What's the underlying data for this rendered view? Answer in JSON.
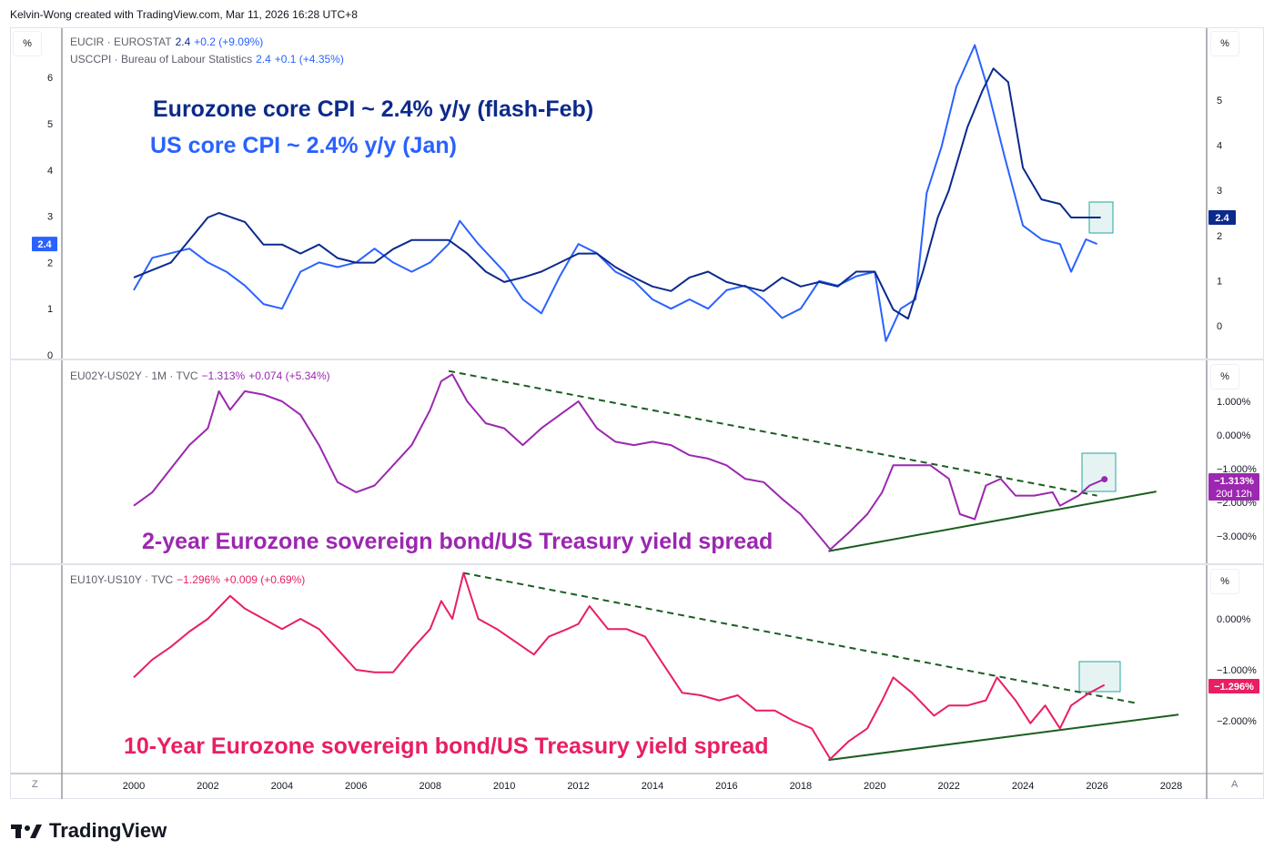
{
  "credit": "Kelvin-Wong created with TradingView.com, Mar 11, 2026 16:28 UTC+8",
  "brand": "TradingView",
  "unit_label": "%",
  "corner_left": "Z",
  "corner_right": "A",
  "legend": {
    "eu": {
      "symbol": "EUCIR · EUROSTAT",
      "value": "2.4",
      "change": "+0.2 (+9.09%)"
    },
    "us": {
      "symbol": "USCCPI · Bureau of Labour Statistics",
      "value": "2.4",
      "change": "+0.1 (+4.35%)"
    },
    "s2": {
      "symbol": "EU02Y-US02Y · 1M · TVC",
      "value": "−1.313%",
      "change": "+0.074 (+5.34%)"
    },
    "s10": {
      "symbol": "EU10Y-US10Y · TVC",
      "value": "−1.296%",
      "change": "+0.009 (+0.69%)"
    }
  },
  "annotations": {
    "eu": "Eurozone core CPI ~ 2.4% y/y (flash-Feb)",
    "us": "US core CPI ~ 2.4% y/y (Jan)",
    "s2": "2-year Eurozone sovereign bond/US Treasury yield spread",
    "s10": "10-Year Eurozone sovereign bond/US Treasury yield spread"
  },
  "colors": {
    "eu": "#0c2a8c",
    "us": "#2962ff",
    "s2": "#9c27b0",
    "s10": "#e91e63",
    "trend": "#1b5e20",
    "box": "#26a69a"
  },
  "chart_data": [
    {
      "type": "line",
      "pane": "top",
      "x_ticks": [
        2000,
        2002,
        2004,
        2006,
        2008,
        2010,
        2012,
        2014,
        2016,
        2018,
        2020,
        2022,
        2024,
        2026,
        2028
      ],
      "left_axis": {
        "ticks": [
          0,
          1,
          2,
          3,
          4,
          5,
          6
        ],
        "last_label": "2.4"
      },
      "right_axis": {
        "ticks": [
          0,
          1,
          2,
          3,
          4,
          5
        ],
        "last_label": "2.4"
      },
      "series": [
        {
          "name": "EUCIR",
          "axis": "right",
          "x": [
            2000,
            2001,
            2001.5,
            2002,
            2002.3,
            2003,
            2003.5,
            2004,
            2004.5,
            2005,
            2005.5,
            2006,
            2006.5,
            2007,
            2007.5,
            2008,
            2008.5,
            2009,
            2009.5,
            2010,
            2010.5,
            2011,
            2011.5,
            2012,
            2012.5,
            2013,
            2013.5,
            2014,
            2014.5,
            2015,
            2015.5,
            2016,
            2016.5,
            2017,
            2017.5,
            2018,
            2018.5,
            2019,
            2019.5,
            2020,
            2020.5,
            2020.9,
            2021.3,
            2021.7,
            2022,
            2022.5,
            2022.9,
            2023.2,
            2023.6,
            2024,
            2024.5,
            2025,
            2025.3,
            2025.8,
            2026.1
          ],
          "y": [
            1.07,
            1.4,
            1.9,
            2.4,
            2.5,
            2.3,
            1.8,
            1.8,
            1.6,
            1.8,
            1.5,
            1.4,
            1.4,
            1.7,
            1.9,
            1.9,
            1.9,
            1.6,
            1.2,
            0.97,
            1.07,
            1.2,
            1.4,
            1.6,
            1.6,
            1.3,
            1.07,
            0.87,
            0.77,
            1.07,
            1.2,
            0.97,
            0.87,
            0.77,
            1.07,
            0.87,
            0.97,
            0.87,
            1.2,
            1.2,
            0.36,
            0.16,
            1.2,
            2.4,
            3.0,
            4.4,
            5.2,
            5.7,
            5.4,
            3.5,
            2.8,
            2.7,
            2.4,
            2.4,
            2.4
          ]
        },
        {
          "name": "USCCPI",
          "axis": "left",
          "x": [
            2000,
            2000.5,
            2001,
            2001.5,
            2002,
            2002.5,
            2003,
            2003.5,
            2004,
            2004.5,
            2005,
            2005.5,
            2006,
            2006.5,
            2007,
            2007.5,
            2008,
            2008.5,
            2008.8,
            2009.3,
            2010,
            2010.5,
            2011,
            2011.5,
            2012,
            2012.5,
            2013,
            2013.5,
            2014,
            2014.5,
            2015,
            2015.5,
            2016,
            2016.5,
            2017,
            2017.5,
            2018,
            2018.5,
            2019,
            2019.5,
            2020,
            2020.3,
            2020.7,
            2021.1,
            2021.4,
            2021.8,
            2022.2,
            2022.7,
            2023,
            2023.5,
            2024,
            2024.5,
            2025,
            2025.3,
            2025.7,
            2026
          ],
          "y": [
            1.4,
            2.1,
            2.2,
            2.3,
            2.0,
            1.8,
            1.5,
            1.1,
            1.0,
            1.8,
            2.0,
            1.9,
            2.0,
            2.3,
            2.0,
            1.8,
            2.0,
            2.4,
            2.9,
            2.4,
            1.8,
            1.2,
            0.9,
            1.7,
            2.4,
            2.2,
            1.8,
            1.6,
            1.2,
            1.0,
            1.2,
            1.0,
            1.4,
            1.5,
            1.2,
            0.8,
            1.0,
            1.6,
            1.5,
            1.7,
            1.8,
            0.3,
            1.0,
            1.2,
            3.5,
            4.5,
            5.8,
            6.7,
            5.9,
            4.3,
            2.8,
            2.5,
            2.4,
            1.8,
            2.5,
            2.4
          ]
        }
      ]
    },
    {
      "type": "line",
      "pane": "2y",
      "unit": "%",
      "right_axis": {
        "ticks": [
          1,
          0,
          -1,
          -2,
          -3
        ],
        "last_label": "−1.313%",
        "countdown": "20d 12h"
      },
      "series": [
        {
          "name": "EU02Y-US02Y",
          "x": [
            2000,
            2000.5,
            2001,
            2001.5,
            2002,
            2002.3,
            2002.6,
            2003,
            2003.5,
            2004,
            2004.5,
            2005,
            2005.5,
            2006,
            2006.5,
            2007,
            2007.5,
            2008,
            2008.3,
            2008.6,
            2009,
            2009.5,
            2010,
            2010.5,
            2011,
            2011.5,
            2012,
            2012.5,
            2013,
            2013.5,
            2014,
            2014.5,
            2015,
            2015.5,
            2016,
            2016.5,
            2017,
            2017.5,
            2018,
            2018.5,
            2018.8,
            2019.3,
            2019.8,
            2020.2,
            2020.5,
            2021,
            2021.5,
            2022,
            2022.3,
            2022.7,
            2023,
            2023.4,
            2023.8,
            2024.3,
            2024.8,
            2025,
            2025.5,
            2025.8,
            2026.2
          ],
          "y": [
            -2.1,
            -1.7,
            -1.0,
            -0.3,
            0.2,
            1.3,
            0.75,
            1.3,
            1.2,
            1.0,
            0.6,
            -0.3,
            -1.4,
            -1.7,
            -1.5,
            -0.9,
            -0.3,
            0.75,
            1.6,
            1.8,
            1.0,
            0.35,
            0.2,
            -0.3,
            0.2,
            0.6,
            1.0,
            0.2,
            -0.2,
            -0.3,
            -0.2,
            -0.3,
            -0.6,
            -0.7,
            -0.9,
            -1.3,
            -1.4,
            -1.9,
            -2.35,
            -3.0,
            -3.4,
            -2.9,
            -2.35,
            -1.7,
            -0.9,
            -0.9,
            -0.9,
            -1.3,
            -2.35,
            -2.5,
            -1.5,
            -1.3,
            -1.8,
            -1.8,
            -1.7,
            -2.1,
            -1.8,
            -1.5,
            -1.313
          ]
        }
      ],
      "trendlines": [
        {
          "style": "dashed",
          "from": [
            2008.5,
            1.9
          ],
          "to": [
            2026,
            -1.8
          ]
        },
        {
          "style": "solid",
          "from": [
            2018.75,
            -3.45
          ],
          "to": [
            2027.6,
            -1.68
          ]
        }
      ]
    },
    {
      "type": "line",
      "pane": "10y",
      "unit": "%",
      "right_axis": {
        "ticks": [
          0,
          -1,
          -2
        ],
        "last_label": "−1.296%"
      },
      "series": [
        {
          "name": "EU10Y-US10Y",
          "x": [
            2000,
            2000.5,
            2001,
            2001.5,
            2002,
            2002.6,
            2003,
            2003.5,
            2004,
            2004.5,
            2005,
            2005.5,
            2006,
            2006.5,
            2007,
            2007.5,
            2008,
            2008.3,
            2008.6,
            2008.9,
            2009.3,
            2009.8,
            2010.3,
            2010.8,
            2011.2,
            2011.7,
            2012,
            2012.3,
            2012.8,
            2013.3,
            2013.8,
            2014.3,
            2014.8,
            2015.3,
            2015.8,
            2016.3,
            2016.8,
            2017.3,
            2017.8,
            2018.3,
            2018.8,
            2019.3,
            2019.8,
            2020.2,
            2020.5,
            2021,
            2021.6,
            2022,
            2022.5,
            2023,
            2023.3,
            2023.8,
            2024.2,
            2024.6,
            2025,
            2025.3,
            2025.8,
            2026.2
          ],
          "y": [
            -1.15,
            -0.8,
            -0.55,
            -0.25,
            0,
            0.45,
            0.2,
            0,
            -0.2,
            0,
            -0.2,
            -0.6,
            -1.0,
            -1.05,
            -1.05,
            -0.6,
            -0.2,
            0.35,
            0,
            0.9,
            0,
            -0.2,
            -0.45,
            -0.7,
            -0.35,
            -0.2,
            -0.1,
            0.25,
            -0.2,
            -0.2,
            -0.35,
            -0.9,
            -1.45,
            -1.5,
            -1.6,
            -1.5,
            -1.8,
            -1.8,
            -2.0,
            -2.15,
            -2.75,
            -2.4,
            -2.15,
            -1.6,
            -1.15,
            -1.45,
            -1.9,
            -1.7,
            -1.7,
            -1.6,
            -1.15,
            -1.6,
            -2.05,
            -1.7,
            -2.15,
            -1.7,
            -1.45,
            -1.296
          ]
        }
      ],
      "trendlines": [
        {
          "style": "dashed",
          "from": [
            2008.9,
            0.9
          ],
          "to": [
            2027.1,
            -1.66
          ]
        },
        {
          "style": "solid",
          "from": [
            2018.75,
            -2.77
          ],
          "to": [
            2028.2,
            -1.88
          ]
        }
      ]
    }
  ]
}
